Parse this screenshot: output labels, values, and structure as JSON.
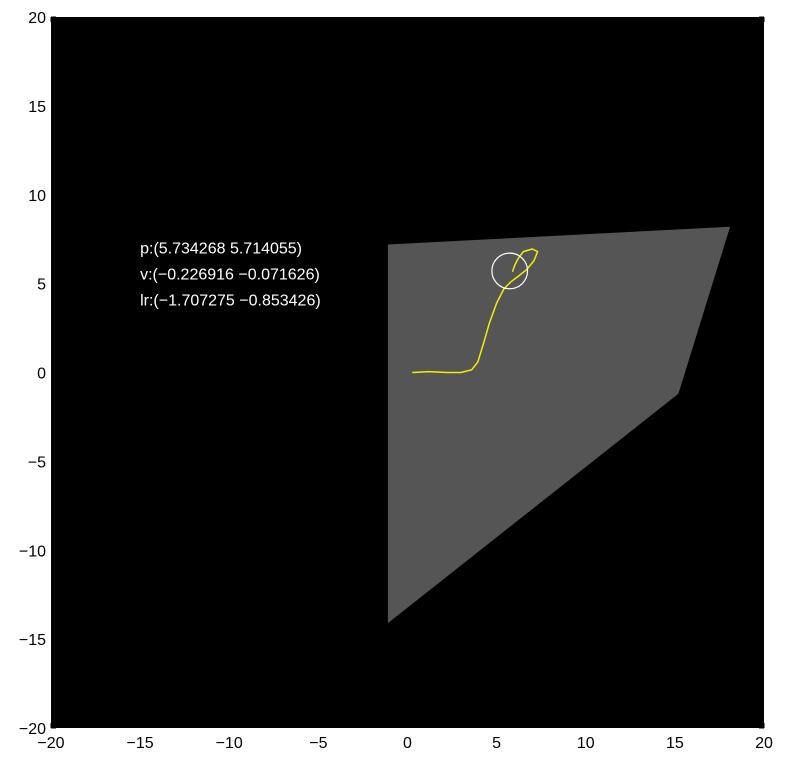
{
  "chart_data": {
    "type": "scatter",
    "title": "",
    "xlabel": "",
    "ylabel": "",
    "xlim": [
      -20,
      20
    ],
    "ylim": [
      -20,
      20
    ],
    "xticks": [
      -20,
      -15,
      -10,
      -5,
      0,
      5,
      10,
      15,
      20
    ],
    "yticks": [
      -20,
      -15,
      -10,
      -5,
      0,
      5,
      10,
      15,
      20
    ],
    "grid": false,
    "colors": {
      "background": "#000000",
      "region": "#555555",
      "trajectory": "#f0f000",
      "agent_circle": "#ffffff",
      "text": "#ffffff"
    },
    "region_polygon": [
      [
        -1.1,
        7.2
      ],
      [
        18.1,
        8.2
      ],
      [
        15.2,
        -1.2
      ],
      [
        -1.1,
        -14.1
      ]
    ],
    "trajectory": [
      [
        0.3,
        0.0
      ],
      [
        1.2,
        0.05
      ],
      [
        2.2,
        0.0
      ],
      [
        3.0,
        0.0
      ],
      [
        3.6,
        0.15
      ],
      [
        3.95,
        0.6
      ],
      [
        4.25,
        1.6
      ],
      [
        4.6,
        2.8
      ],
      [
        5.0,
        3.9
      ],
      [
        5.4,
        4.7
      ],
      [
        5.8,
        5.1
      ],
      [
        6.2,
        5.4
      ],
      [
        6.7,
        5.8
      ],
      [
        7.1,
        6.3
      ],
      [
        7.3,
        6.8
      ],
      [
        7.0,
        6.95
      ],
      [
        6.5,
        6.8
      ],
      [
        6.2,
        6.4
      ],
      [
        6.0,
        6.0
      ],
      [
        5.9,
        5.7
      ]
    ],
    "agent": {
      "x": 5.734268,
      "y": 5.714055,
      "radius": 1.0
    },
    "readout": {
      "anchor": [
        -15.0,
        6.7
      ],
      "lines": [
        "p:(5.734268 5.714055)",
        "v:(−0.226916 −0.071626)",
        "lr:(−1.707275 −0.853426)"
      ]
    }
  }
}
